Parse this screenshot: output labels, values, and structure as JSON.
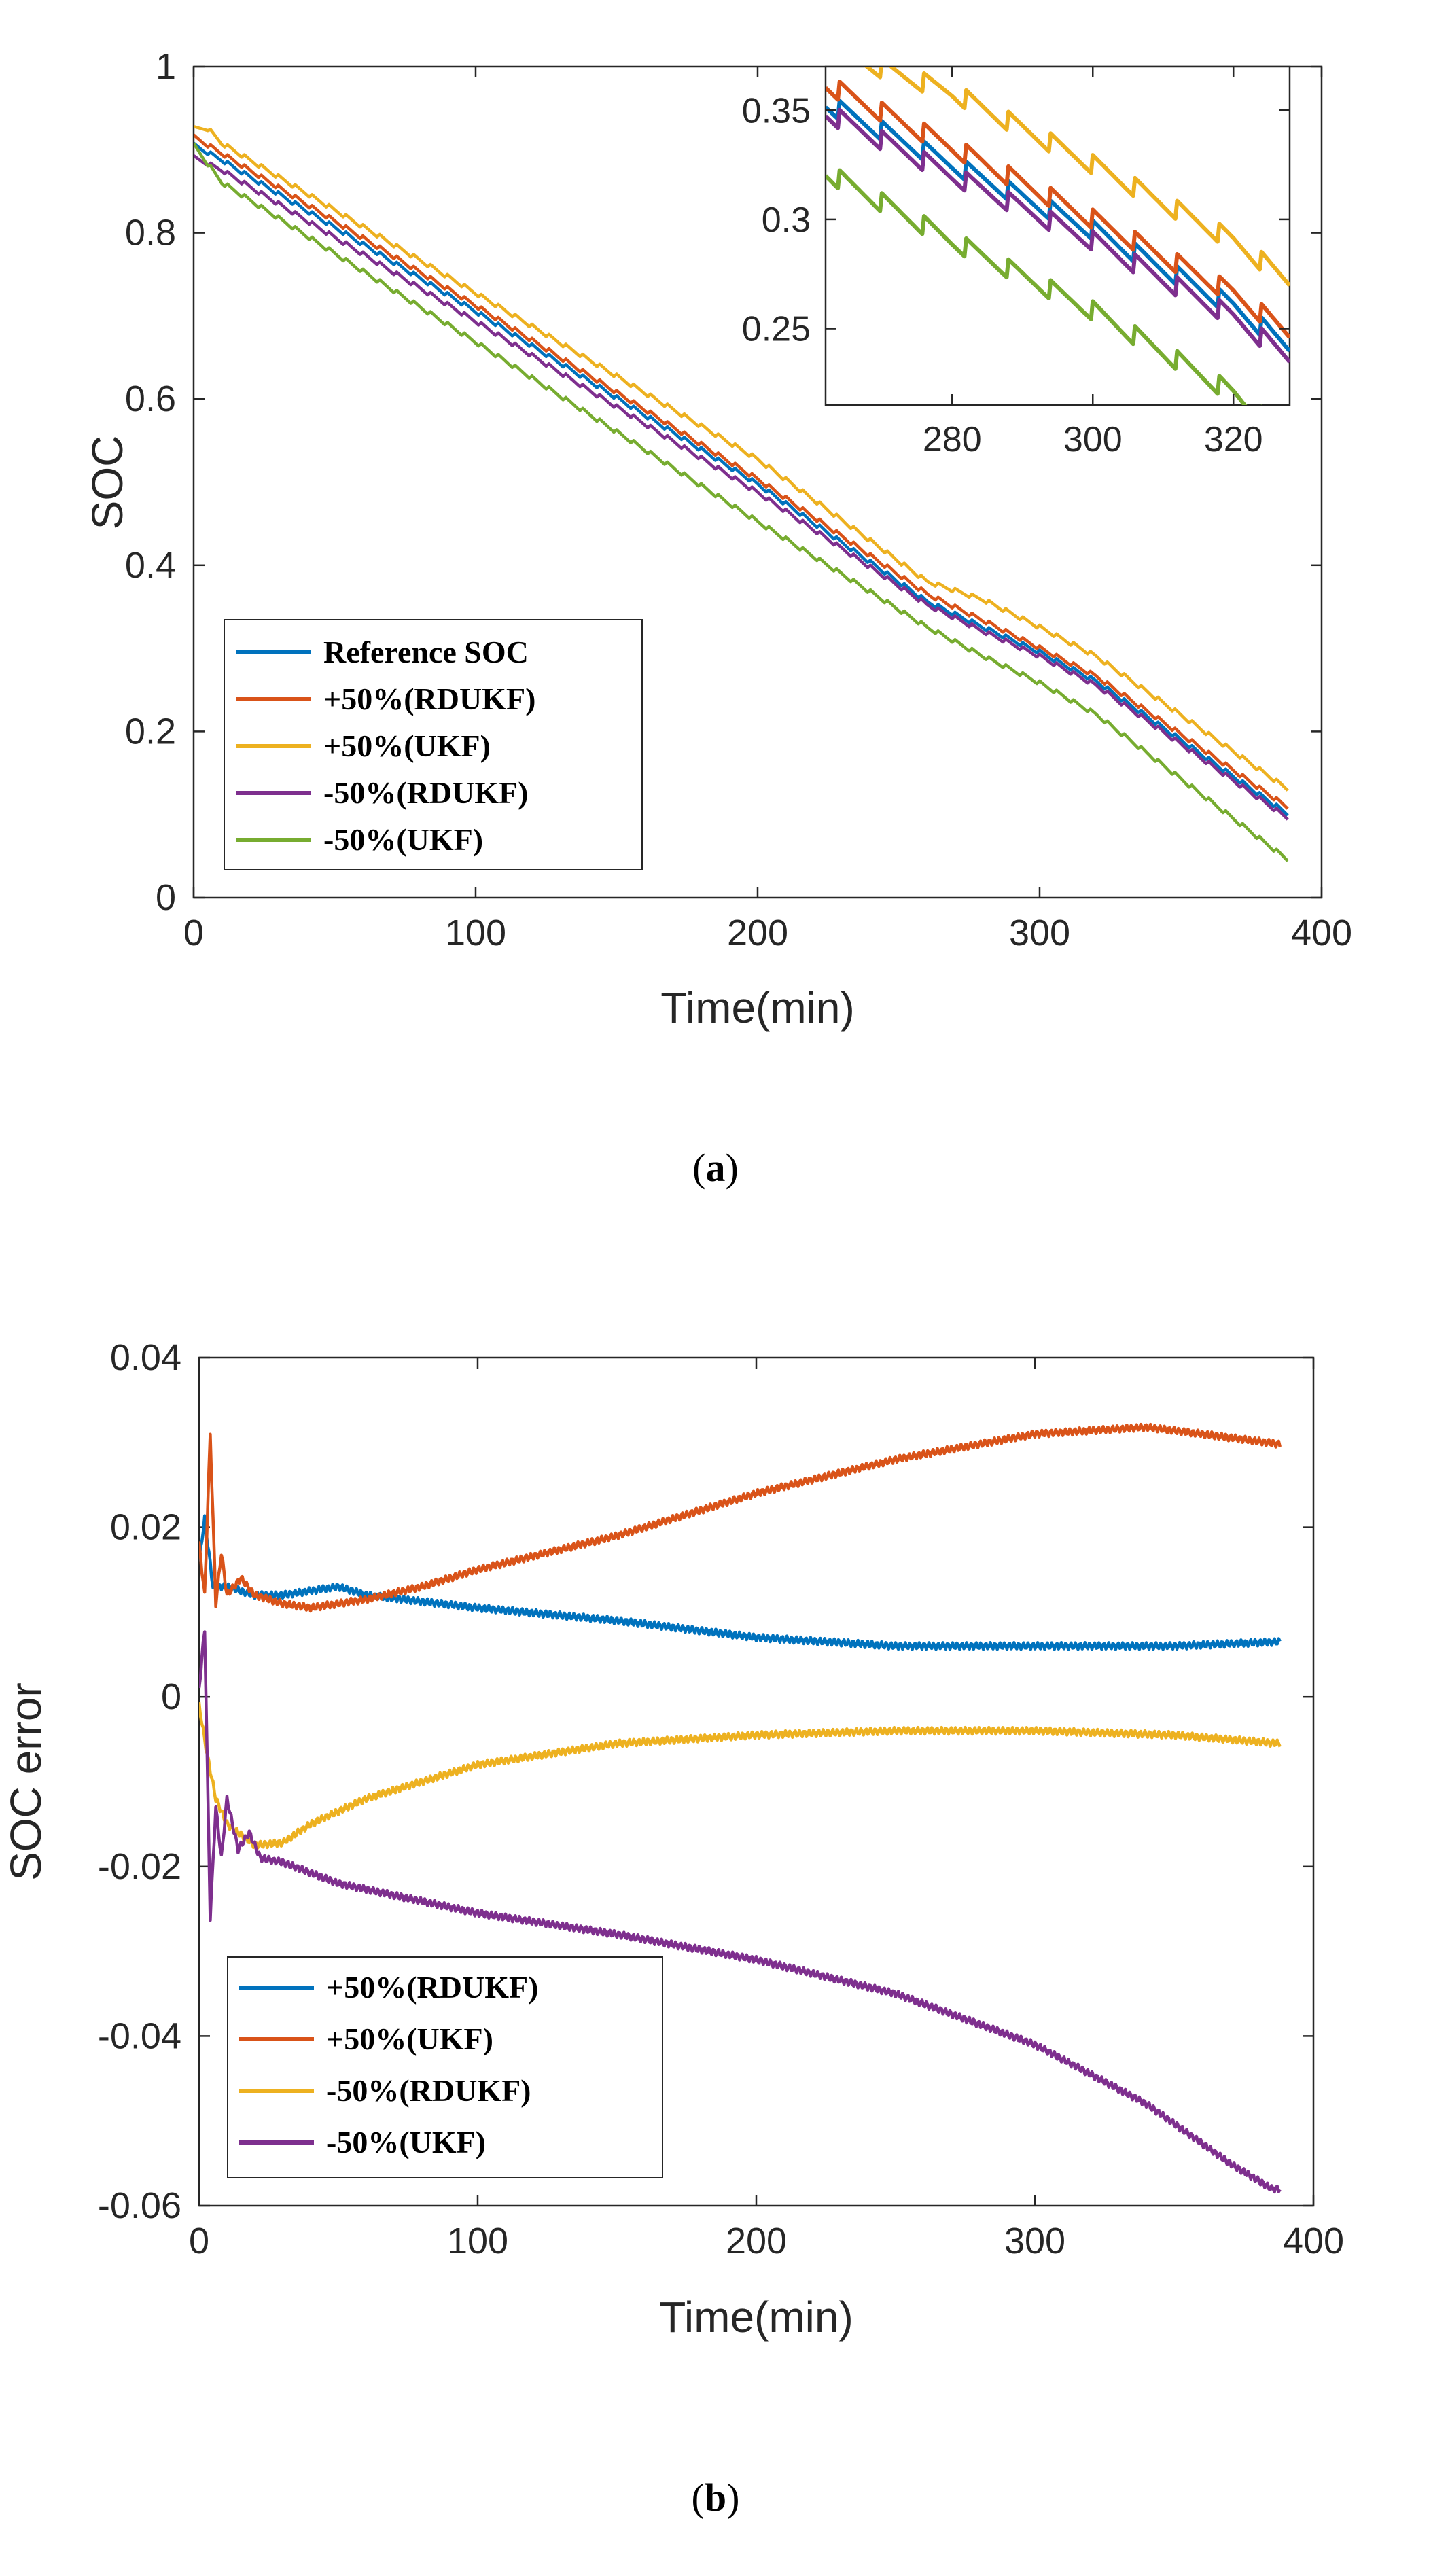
{
  "colors": {
    "blue": "#0072BD",
    "orange": "#D95319",
    "yellow": "#EDB120",
    "purple": "#7E2F8E",
    "green": "#77AC30"
  },
  "chart_data": [
    {
      "id": "a",
      "type": "line",
      "caption": {
        "open": "(",
        "letter": "a",
        "close": ")"
      },
      "xlabel": "Time(min)",
      "ylabel": "SOC",
      "xlim": [
        0,
        400
      ],
      "ylim": [
        0,
        1
      ],
      "xticks": [
        "0",
        "100",
        "200",
        "300",
        "400"
      ],
      "yticks": [
        "0",
        "0.2",
        "0.4",
        "0.6",
        "0.8",
        "1"
      ],
      "grid": false,
      "legend": "bottom-left",
      "series": [
        {
          "name": "Reference SOC",
          "color": "#0072BD",
          "x": [
            0,
            10,
            100,
            200,
            260,
            280,
            300,
            320,
            388
          ],
          "y": [
            0.905,
            0.887,
            0.705,
            0.497,
            0.356,
            0.325,
            0.295,
            0.26,
            0.1
          ]
        },
        {
          "name": "+50%(RDUKF)",
          "color": "#D95319",
          "x": [
            0,
            10,
            100,
            200,
            260,
            280,
            300,
            320,
            388
          ],
          "y": [
            0.915,
            0.895,
            0.712,
            0.503,
            0.365,
            0.333,
            0.3,
            0.266,
            0.108
          ]
        },
        {
          "name": "+50%(UKF)",
          "color": "#EDB120",
          "x": [
            0,
            5,
            10,
            100,
            200,
            260,
            280,
            300,
            320,
            388
          ],
          "y": [
            0.925,
            0.925,
            0.907,
            0.727,
            0.527,
            0.38,
            0.358,
            0.325,
            0.29,
            0.13
          ]
        },
        {
          "name": "-50%(RDUKF)",
          "color": "#7E2F8E",
          "x": [
            0,
            10,
            100,
            200,
            260,
            280,
            300,
            320,
            388
          ],
          "y": [
            0.89,
            0.875,
            0.693,
            0.487,
            0.352,
            0.32,
            0.29,
            0.255,
            0.095
          ]
        },
        {
          "name": "-50%(UKF)",
          "color": "#77AC30",
          "x": [
            0,
            10,
            100,
            200,
            260,
            280,
            300,
            320,
            388
          ],
          "y": [
            0.905,
            0.86,
            0.668,
            0.452,
            0.325,
            0.29,
            0.258,
            0.22,
            0.045
          ]
        }
      ],
      "inset": {
        "xlim": [
          262,
          328
        ],
        "ylim": [
          0.215,
          0.37
        ],
        "xticks": [
          "280",
          "300",
          "320"
        ],
        "yticks": [
          "0.25",
          "0.3",
          "0.35"
        ]
      }
    },
    {
      "id": "b",
      "type": "line",
      "caption": {
        "open": "(",
        "letter": "b",
        "close": ")"
      },
      "xlabel": "Time(min)",
      "ylabel": "SOC error",
      "xlim": [
        0,
        400
      ],
      "ylim": [
        -0.06,
        0.04
      ],
      "xticks": [
        "0",
        "100",
        "200",
        "300",
        "400"
      ],
      "yticks": [
        "-0.06",
        "-0.04",
        "-0.02",
        "0",
        "0.02",
        "0.04"
      ],
      "grid": false,
      "legend": "bottom-left",
      "series": [
        {
          "name": "+50%(RDUKF)",
          "color": "#0072BD",
          "x": [
            0,
            2,
            5,
            10,
            20,
            30,
            40,
            50,
            60,
            100,
            150,
            200,
            250,
            300,
            350,
            388
          ],
          "y": [
            0.016,
            0.021,
            0.013,
            0.013,
            0.012,
            0.012,
            0.0125,
            0.013,
            0.012,
            0.0105,
            0.009,
            0.007,
            0.006,
            0.006,
            0.006,
            0.0065
          ]
        },
        {
          "name": "+50%(UKF)",
          "color": "#D95319",
          "x": [
            0,
            2,
            4,
            6,
            8,
            10,
            15,
            20,
            30,
            40,
            50,
            60,
            80,
            100,
            150,
            200,
            250,
            300,
            340,
            360,
            388
          ],
          "y": [
            0.018,
            0.012,
            0.031,
            0.011,
            0.017,
            0.012,
            0.014,
            0.012,
            0.011,
            0.0105,
            0.011,
            0.0115,
            0.013,
            0.015,
            0.019,
            0.024,
            0.028,
            0.031,
            0.0318,
            0.031,
            0.0298
          ]
        },
        {
          "name": "-50%(RDUKF)",
          "color": "#EDB120",
          "x": [
            0,
            3,
            6,
            10,
            20,
            30,
            40,
            60,
            100,
            150,
            200,
            250,
            300,
            350,
            388
          ],
          "y": [
            -0.001,
            -0.007,
            -0.012,
            -0.015,
            -0.0175,
            -0.0172,
            -0.015,
            -0.012,
            -0.008,
            -0.0055,
            -0.0045,
            -0.004,
            -0.004,
            -0.0045,
            -0.0055
          ]
        },
        {
          "name": "-50%(UKF)",
          "color": "#7E2F8E",
          "x": [
            0,
            2,
            4,
            6,
            8,
            10,
            14,
            18,
            22,
            30,
            50,
            100,
            150,
            200,
            250,
            300,
            340,
            370,
            385,
            388
          ],
          "y": [
            0.001,
            0.008,
            -0.026,
            -0.013,
            -0.019,
            -0.012,
            -0.018,
            -0.016,
            -0.019,
            -0.0195,
            -0.022,
            -0.0255,
            -0.028,
            -0.031,
            -0.035,
            -0.041,
            -0.048,
            -0.055,
            -0.058,
            -0.058
          ]
        }
      ]
    }
  ]
}
